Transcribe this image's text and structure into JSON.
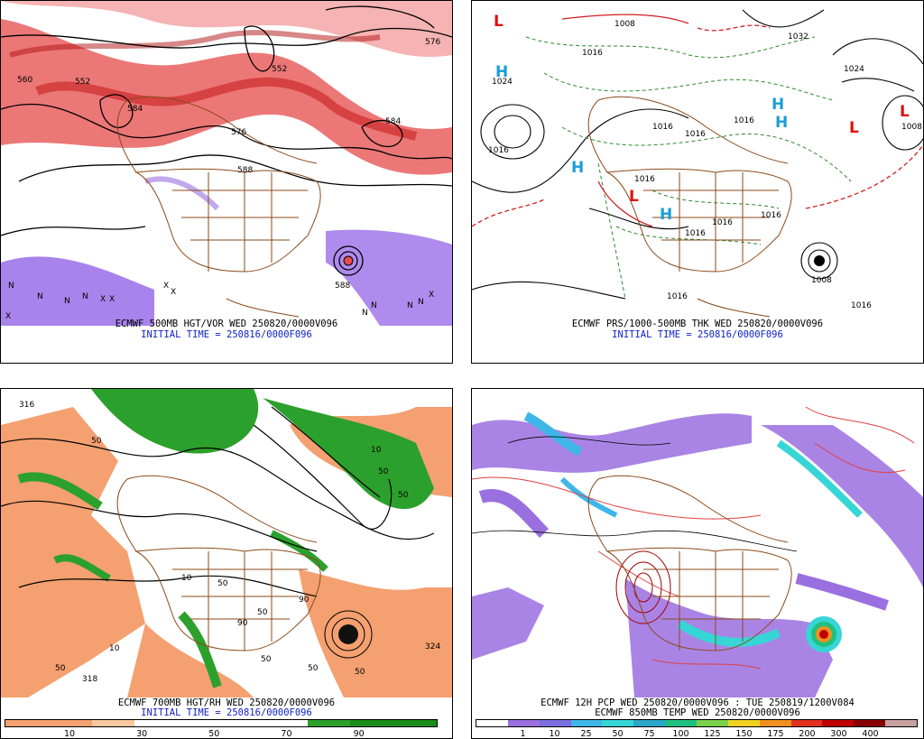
{
  "panels": [
    {
      "id": "p500",
      "caption_line1": "ECMWF 500MB HGT/VOR WED 250820/0000V096",
      "caption_line2": "INITIAL TIME = 250816/0000F096",
      "contour_labels": [
        "552",
        "584",
        "576",
        "588",
        "576",
        "552",
        "576",
        "588",
        "588",
        "584"
      ],
      "markers": [
        "N",
        "X"
      ]
    },
    {
      "id": "psfc",
      "caption_line1": "ECMWF PRS/1000-500MB THK WED 250820/0000V096",
      "caption_line2": "INITIAL TIME = 250816/0000F096",
      "contour_labels": [
        "1008",
        "1016",
        "1024",
        "1016",
        "1016",
        "1016",
        "1032",
        "1024",
        "1008",
        "1016",
        "1016",
        "1016",
        "1016",
        "1016",
        "1016",
        "1008",
        "1016"
      ],
      "centers_high": [
        "H",
        "H",
        "H",
        "H",
        "H"
      ],
      "centers_low": [
        "L",
        "L",
        "L",
        "L"
      ]
    },
    {
      "id": "p700",
      "caption_line1": "ECMWF 700MB HGT/RH WED 250820/0000V096",
      "caption_line2": "INITIAL TIME = 250816/0000F096",
      "contour_labels": [
        "316",
        "50",
        "10",
        "50",
        "50",
        "10",
        "50",
        "90",
        "50",
        "10",
        "50",
        "50",
        "90",
        "318",
        "324",
        "50",
        "50"
      ],
      "colorbar": {
        "colors": [
          "#f4a070",
          "#f4a070",
          "#f8c8a0",
          "#ffffff",
          "#ffffff",
          "#ffffff",
          "#ffffff",
          "#2ca02c",
          "#1a8c1a",
          "#1a8c1a"
        ],
        "labels": [
          "10",
          "30",
          "50",
          "70",
          "90"
        ]
      }
    },
    {
      "id": "pcp",
      "caption_line1": "ECMWF 12H PCP WED 250820/0000V096 : TUE 250819/1200V084",
      "caption_line2": "ECMWF 850MB TEMP WED 250820/0000V096",
      "colorbar": {
        "colors": [
          "#ffffff",
          "#9a6fe0",
          "#7b6fe0",
          "#3fb6e8",
          "#36d6d6",
          "#2aa6c8",
          "#20c080",
          "#7ad04a",
          "#f0d020",
          "#f09020",
          "#e03020",
          "#c00000",
          "#880000",
          "#c8a0a0"
        ],
        "labels": [
          "1",
          "10",
          "25",
          "50",
          "75",
          "100",
          "125",
          "150",
          "175",
          "200",
          "300",
          "400"
        ]
      }
    }
  ]
}
